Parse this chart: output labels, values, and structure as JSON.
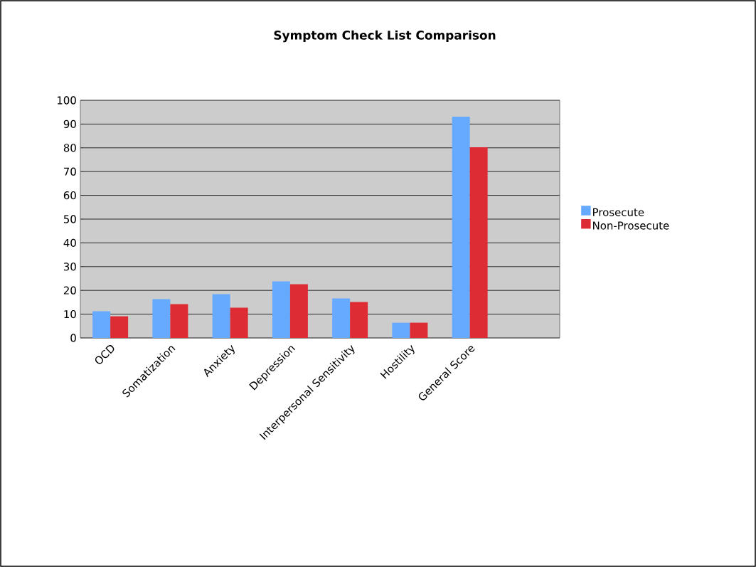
{
  "chart_data": {
    "type": "bar",
    "title": "Symptom Check List Comparison",
    "categories": [
      "OCD",
      "Somatization",
      "Anxiety",
      "Depression",
      "Interpersonal Sensitivity",
      "Hostility",
      "General Score",
      null
    ],
    "series": [
      {
        "name": "Prosecute",
        "color": "#66aaff",
        "values": [
          11.2,
          16.3,
          18.4,
          23.8,
          16.6,
          6.4,
          93.1,
          null
        ]
      },
      {
        "name": "Non-Prosecute",
        "color": "#dd2c33",
        "values": [
          9.1,
          14.2,
          12.7,
          22.6,
          15.1,
          6.4,
          80.2,
          null
        ]
      }
    ],
    "ylim": [
      0,
      100
    ],
    "yticks": [
      0,
      10,
      20,
      30,
      40,
      50,
      60,
      70,
      80,
      90,
      100
    ],
    "grid": "y",
    "legend": "right"
  }
}
